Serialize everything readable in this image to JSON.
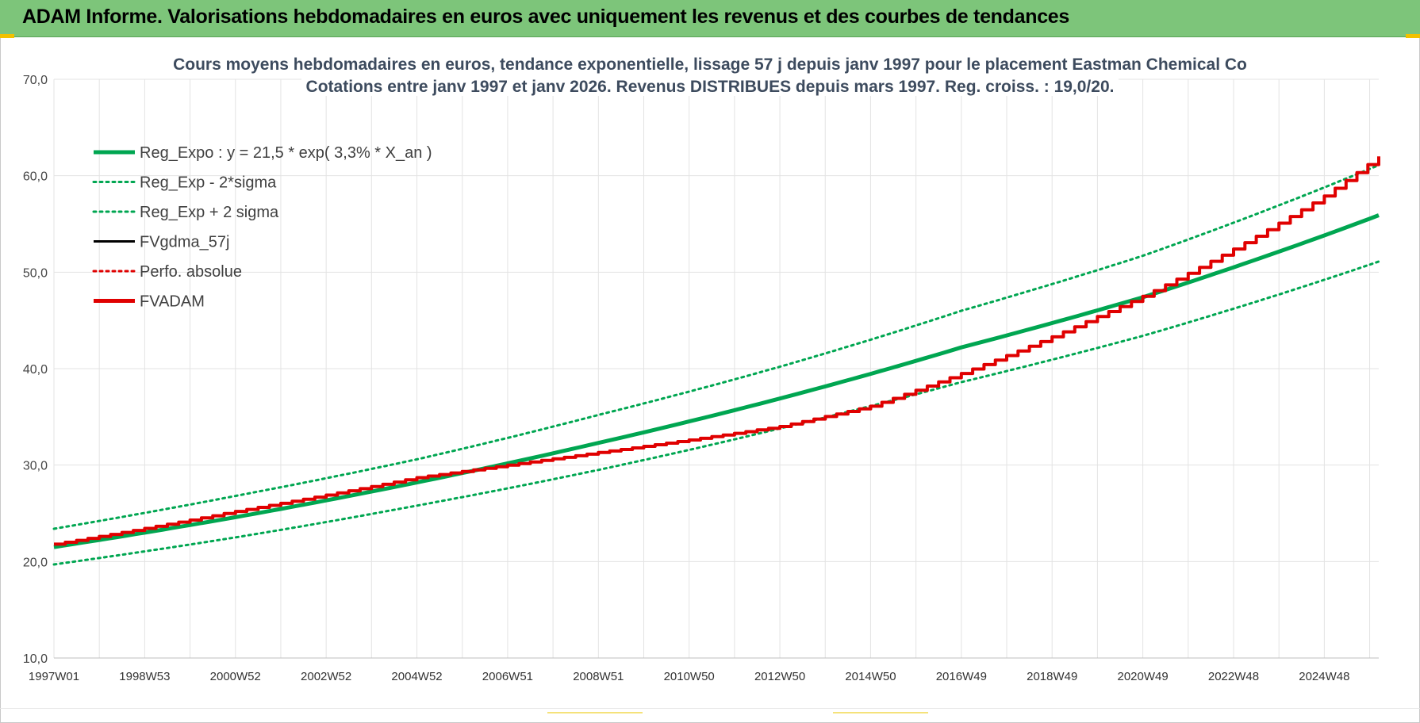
{
  "banner": {
    "title": "ADAM Informe. Valorisations hebdomadaires en euros avec uniquement les revenus et des courbes de tendances"
  },
  "chart_data": {
    "type": "line",
    "title": "Cours moyens hebdomadaires en euros, tendance exponentielle, lissage 57 j depuis janv 1997  pour le  placement Eastman Chemical Co",
    "subtitle": "Cotations entre janv 1997 et janv 2026. Revenus DISTRIBUES depuis mars 1997.  Reg. croiss. : 19,0/20.",
    "xlabel": "",
    "ylabel": "",
    "ylim": [
      10,
      70
    ],
    "xlim": [
      1997.0,
      2026.2
    ],
    "y_ticks": [
      "10,0",
      "20,0",
      "30,0",
      "40,0",
      "50,0",
      "60,0",
      "70,0"
    ],
    "x_tick_labels": [
      "1997W01",
      "1998W53",
      "2000W52",
      "2002W52",
      "2004W52",
      "2006W51",
      "2008W51",
      "2010W50",
      "2012W50",
      "2014W50",
      "2016W49",
      "2018W49",
      "2020W49",
      "2022W48",
      "2024W48"
    ],
    "x_tick_years": [
      1997.0,
      1999.0,
      2001.0,
      2003.0,
      2005.0,
      2007.0,
      2009.0,
      2011.0,
      2013.0,
      2015.0,
      2017.0,
      2019.0,
      2021.0,
      2023.0,
      2025.0
    ],
    "grid": true,
    "legend_position": "top-left",
    "series": [
      {
        "name": "Reg_Expo : y = 21,5 * exp( 3,3% *  X_an )",
        "color": "#00a651",
        "style": "solid",
        "x": [
          1997.0,
          2001.0,
          2005.0,
          2009.0,
          2013.0,
          2017.0,
          2021.0,
          2026.2
        ],
        "values": [
          21.5,
          24.6,
          28.2,
          32.3,
          36.9,
          42.2,
          47.4,
          55.9
        ]
      },
      {
        "name": "Reg_Exp - 2*sigma",
        "color": "#00a651",
        "style": "dotted",
        "x": [
          1997.0,
          2001.0,
          2005.0,
          2009.0,
          2013.0,
          2017.0,
          2021.0,
          2026.2
        ],
        "values": [
          19.7,
          22.5,
          25.8,
          29.5,
          33.8,
          38.6,
          43.4,
          51.1
        ]
      },
      {
        "name": "Reg_Exp + 2 sigma",
        "color": "#00a651",
        "style": "dotted",
        "x": [
          1997.0,
          2001.0,
          2005.0,
          2009.0,
          2013.0,
          2017.0,
          2021.0,
          2026.2
        ],
        "values": [
          23.4,
          26.8,
          30.6,
          35.2,
          40.2,
          46.0,
          51.7,
          61.1
        ]
      },
      {
        "name": "FVgdma_57j",
        "color": "#000000",
        "style": "solid",
        "x": [],
        "values": []
      },
      {
        "name": "Perfo. absolue",
        "color": "#e00000",
        "style": "dotted",
        "x": [],
        "values": []
      },
      {
        "name": "FVADAM",
        "color": "#e00000",
        "style": "solid",
        "x": [
          1997.0,
          2001.0,
          2005.0,
          2007.0,
          2009.0,
          2011.0,
          2013.0,
          2015.0,
          2017.0,
          2019.0,
          2020.0,
          2021.0,
          2023.0,
          2025.0,
          2026.2
        ],
        "values": [
          21.8,
          25.2,
          28.7,
          30.0,
          31.3,
          32.6,
          34.0,
          36.1,
          39.5,
          43.3,
          45.4,
          47.5,
          52.4,
          57.9,
          62.0
        ]
      }
    ]
  }
}
